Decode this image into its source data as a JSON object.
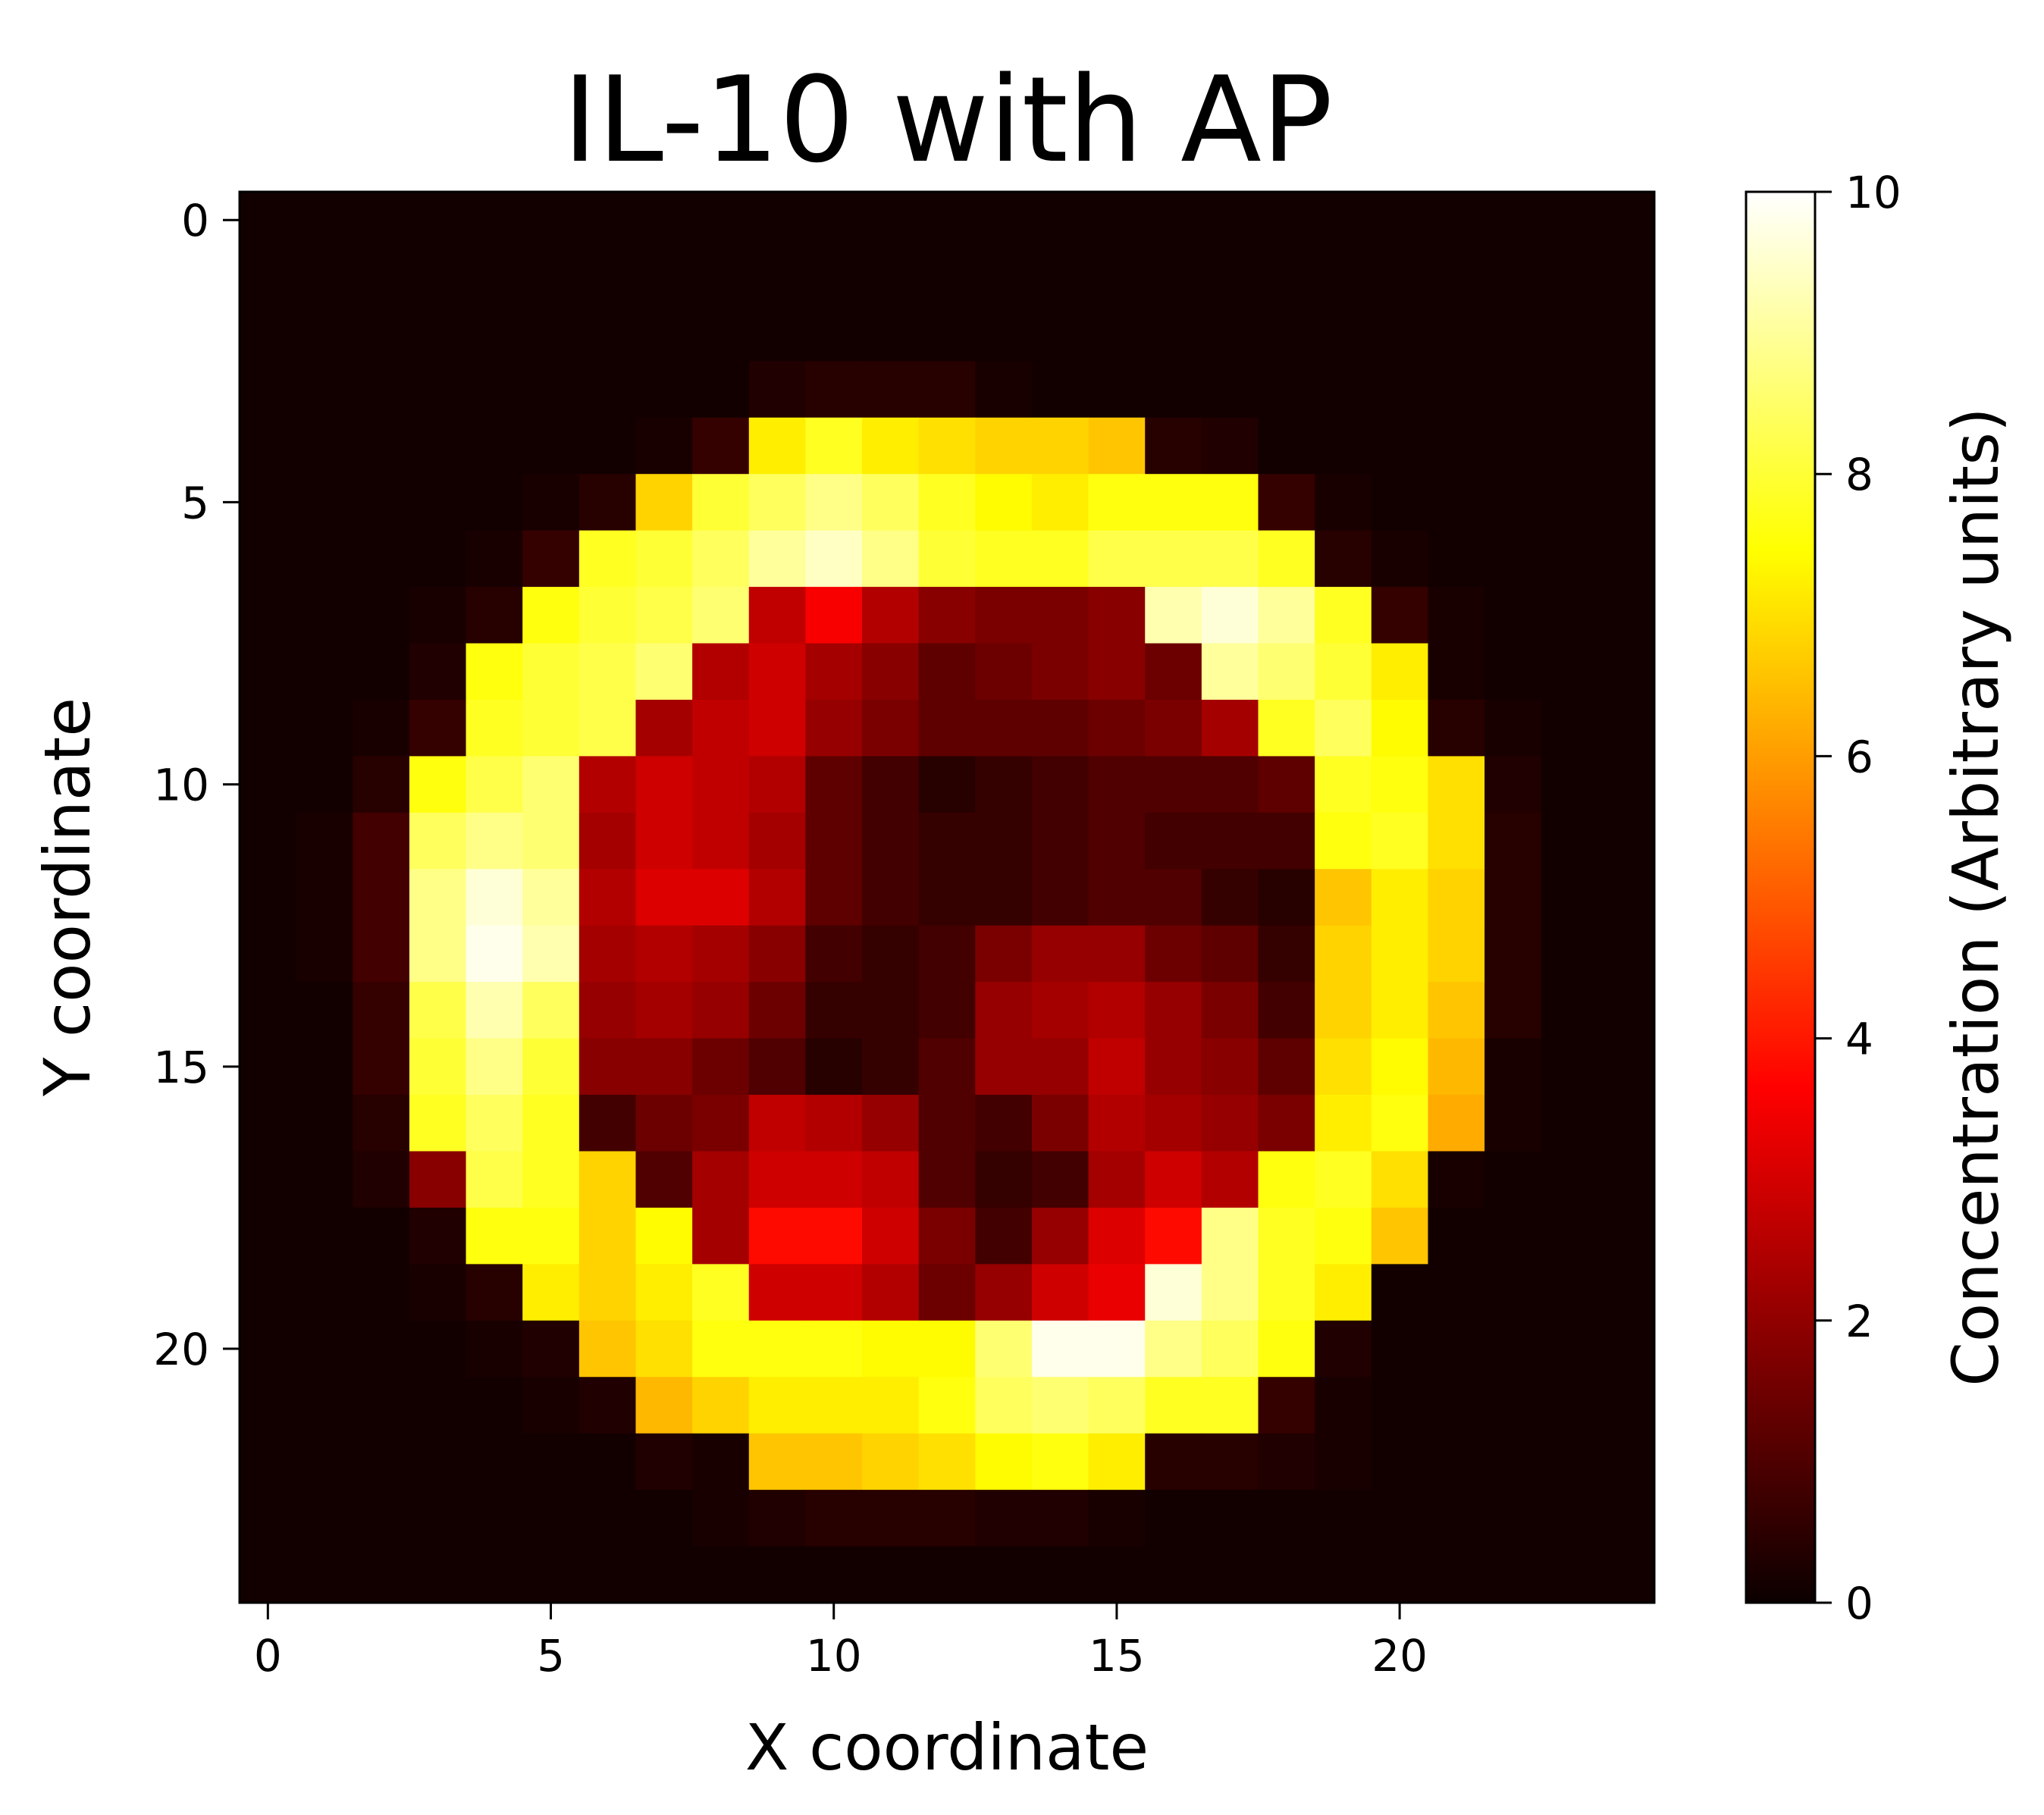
{
  "chart_data": {
    "type": "heatmap",
    "title": "IL-10 with AP",
    "xlabel": "X coordinate",
    "ylabel": "Y coordinate",
    "colorbar_label": "Concentration (Arbitrary units)",
    "colormap": "hot",
    "vmin": 0,
    "vmax": 10,
    "grid_size": [
      25,
      25
    ],
    "x_ticks": [
      "0",
      "5",
      "10",
      "15",
      "20"
    ],
    "y_ticks": [
      "0",
      "5",
      "10",
      "15",
      "20"
    ],
    "colorbar_ticks": [
      "0",
      "2",
      "4",
      "6",
      "8",
      "10"
    ],
    "values": [
      [
        0.1,
        0.1,
        0.1,
        0.1,
        0.1,
        0.1,
        0.1,
        0.1,
        0.1,
        0.1,
        0.1,
        0.1,
        0.1,
        0.1,
        0.1,
        0.1,
        0.1,
        0.1,
        0.1,
        0.1,
        0.1,
        0.1,
        0.1,
        0.1,
        0.1
      ],
      [
        0.1,
        0.1,
        0.1,
        0.1,
        0.1,
        0.1,
        0.1,
        0.1,
        0.1,
        0.1,
        0.1,
        0.1,
        0.1,
        0.1,
        0.1,
        0.1,
        0.1,
        0.1,
        0.1,
        0.1,
        0.1,
        0.1,
        0.1,
        0.1,
        0.1
      ],
      [
        0.1,
        0.1,
        0.1,
        0.1,
        0.1,
        0.1,
        0.1,
        0.1,
        0.1,
        0.1,
        0.1,
        0.1,
        0.1,
        0.1,
        0.1,
        0.1,
        0.1,
        0.1,
        0.1,
        0.1,
        0.1,
        0.1,
        0.1,
        0.1,
        0.1
      ],
      [
        0.1,
        0.1,
        0.1,
        0.1,
        0.1,
        0.1,
        0.1,
        0.1,
        0.1,
        0.3,
        0.4,
        0.4,
        0.4,
        0.2,
        0.1,
        0.1,
        0.1,
        0.1,
        0.1,
        0.1,
        0.1,
        0.1,
        0.1,
        0.1,
        0.1
      ],
      [
        0.1,
        0.1,
        0.1,
        0.1,
        0.1,
        0.1,
        0.1,
        0.2,
        0.6,
        7.2,
        7.8,
        7.2,
        7.0,
        6.8,
        6.8,
        6.6,
        0.4,
        0.3,
        0.1,
        0.1,
        0.1,
        0.1,
        0.1,
        0.1,
        0.1
      ],
      [
        0.1,
        0.1,
        0.1,
        0.1,
        0.1,
        0.2,
        0.4,
        6.8,
        8.0,
        8.4,
        8.8,
        8.4,
        7.8,
        7.4,
        7.2,
        7.6,
        7.6,
        7.6,
        0.6,
        0.2,
        0.1,
        0.1,
        0.1,
        0.1,
        0.1
      ],
      [
        0.1,
        0.1,
        0.1,
        0.1,
        0.2,
        0.6,
        7.8,
        8.0,
        8.4,
        9.0,
        9.4,
        8.8,
        8.0,
        7.8,
        7.8,
        8.2,
        8.2,
        8.2,
        7.8,
        0.4,
        0.2,
        0.1,
        0.1,
        0.1,
        0.1
      ],
      [
        0.1,
        0.1,
        0.1,
        0.2,
        0.4,
        7.6,
        8.0,
        8.2,
        8.6,
        2.6,
        3.4,
        2.4,
        1.8,
        1.6,
        1.6,
        1.8,
        9.2,
        9.6,
        9.0,
        7.8,
        0.6,
        0.2,
        0.1,
        0.1,
        0.1
      ],
      [
        0.1,
        0.1,
        0.1,
        0.3,
        7.6,
        8.0,
        8.2,
        8.6,
        2.4,
        2.8,
        2.2,
        1.8,
        1.2,
        1.4,
        1.6,
        1.8,
        1.4,
        9.0,
        8.6,
        8.0,
        7.2,
        0.2,
        0.1,
        0.1,
        0.1
      ],
      [
        0.1,
        0.1,
        0.2,
        0.6,
        7.8,
        8.0,
        8.2,
        2.2,
        2.6,
        2.8,
        2.0,
        1.6,
        1.2,
        1.2,
        1.2,
        1.4,
        1.6,
        2.2,
        7.8,
        8.4,
        7.4,
        0.4,
        0.2,
        0.1,
        0.1
      ],
      [
        0.1,
        0.1,
        0.4,
        7.6,
        8.2,
        8.6,
        2.4,
        2.8,
        2.6,
        2.4,
        1.2,
        0.8,
        0.4,
        0.6,
        0.8,
        1.0,
        1.0,
        1.0,
        1.2,
        7.8,
        7.6,
        7.0,
        0.3,
        0.1,
        0.1
      ],
      [
        0.1,
        0.2,
        0.8,
        8.4,
        8.8,
        8.6,
        2.2,
        2.8,
        2.6,
        2.2,
        1.2,
        0.8,
        0.6,
        0.6,
        0.8,
        1.0,
        0.8,
        0.8,
        0.8,
        7.6,
        7.8,
        7.0,
        0.4,
        0.1,
        0.1
      ],
      [
        0.1,
        0.2,
        0.8,
        8.8,
        9.6,
        9.0,
        2.4,
        3.0,
        3.0,
        2.4,
        1.2,
        0.8,
        0.6,
        0.6,
        0.8,
        1.0,
        1.0,
        0.6,
        0.4,
        6.6,
        7.2,
        6.8,
        0.4,
        0.1,
        0.1
      ],
      [
        0.1,
        0.2,
        0.8,
        8.8,
        9.8,
        9.2,
        2.2,
        2.4,
        2.2,
        1.8,
        0.8,
        0.6,
        0.8,
        1.6,
        2.0,
        2.0,
        1.4,
        1.2,
        0.6,
        6.8,
        7.2,
        6.8,
        0.4,
        0.1,
        0.1
      ],
      [
        0.1,
        0.1,
        0.6,
        8.2,
        9.2,
        8.4,
        2.0,
        2.2,
        2.0,
        1.4,
        0.6,
        0.6,
        0.8,
        2.0,
        2.2,
        2.4,
        2.0,
        1.6,
        0.8,
        6.8,
        7.2,
        6.6,
        0.4,
        0.1,
        0.1
      ],
      [
        0.1,
        0.1,
        0.6,
        8.0,
        8.8,
        8.0,
        1.8,
        1.8,
        1.4,
        1.0,
        0.4,
        0.6,
        1.0,
        2.0,
        2.0,
        2.6,
        2.0,
        1.8,
        1.2,
        7.0,
        7.4,
        6.4,
        0.2,
        0.1,
        0.1
      ],
      [
        0.1,
        0.1,
        0.4,
        7.8,
        8.4,
        7.8,
        0.8,
        1.4,
        1.6,
        2.6,
        2.4,
        2.0,
        1.0,
        0.8,
        1.6,
        2.4,
        2.2,
        2.0,
        1.6,
        7.2,
        7.6,
        6.2,
        0.2,
        0.1,
        0.1
      ],
      [
        0.1,
        0.1,
        0.3,
        1.8,
        8.2,
        7.8,
        6.8,
        1.0,
        2.2,
        2.8,
        2.8,
        2.6,
        1.0,
        0.6,
        0.8,
        2.2,
        2.8,
        2.4,
        7.6,
        7.8,
        7.0,
        0.2,
        0.1,
        0.1,
        0.1
      ],
      [
        0.1,
        0.1,
        0.1,
        0.3,
        7.6,
        7.6,
        6.8,
        7.4,
        2.2,
        3.8,
        3.8,
        2.8,
        1.6,
        0.8,
        2.0,
        3.0,
        3.8,
        8.8,
        7.8,
        7.6,
        6.6,
        0.1,
        0.1,
        0.1,
        0.1
      ],
      [
        0.1,
        0.1,
        0.1,
        0.2,
        0.4,
        7.2,
        6.8,
        7.2,
        7.8,
        2.8,
        2.8,
        2.4,
        1.4,
        2.0,
        2.8,
        3.2,
        9.6,
        8.8,
        7.8,
        7.2,
        0.1,
        0.1,
        0.1,
        0.1,
        0.1
      ],
      [
        0.1,
        0.1,
        0.1,
        0.1,
        0.2,
        0.3,
        6.6,
        7.0,
        7.6,
        7.6,
        7.6,
        7.4,
        7.4,
        8.6,
        9.8,
        9.8,
        8.8,
        8.4,
        7.6,
        0.3,
        0.1,
        0.1,
        0.1,
        0.1,
        0.1
      ],
      [
        0.1,
        0.1,
        0.1,
        0.1,
        0.1,
        0.2,
        0.3,
        6.4,
        6.8,
        7.2,
        7.2,
        7.2,
        7.6,
        8.4,
        8.6,
        8.4,
        7.8,
        7.8,
        0.6,
        0.2,
        0.1,
        0.1,
        0.1,
        0.1,
        0.1
      ],
      [
        0.1,
        0.1,
        0.1,
        0.1,
        0.1,
        0.1,
        0.1,
        0.3,
        0.2,
        6.6,
        6.6,
        6.8,
        7.0,
        7.4,
        7.6,
        7.2,
        0.4,
        0.4,
        0.3,
        0.2,
        0.1,
        0.1,
        0.1,
        0.1,
        0.1
      ],
      [
        0.1,
        0.1,
        0.1,
        0.1,
        0.1,
        0.1,
        0.1,
        0.1,
        0.2,
        0.3,
        0.4,
        0.4,
        0.4,
        0.3,
        0.3,
        0.2,
        0.1,
        0.1,
        0.1,
        0.1,
        0.1,
        0.1,
        0.1,
        0.1,
        0.1
      ],
      [
        0.1,
        0.1,
        0.1,
        0.1,
        0.1,
        0.1,
        0.1,
        0.1,
        0.1,
        0.1,
        0.1,
        0.1,
        0.1,
        0.1,
        0.1,
        0.1,
        0.1,
        0.1,
        0.1,
        0.1,
        0.1,
        0.1,
        0.1,
        0.1,
        0.1
      ]
    ]
  }
}
